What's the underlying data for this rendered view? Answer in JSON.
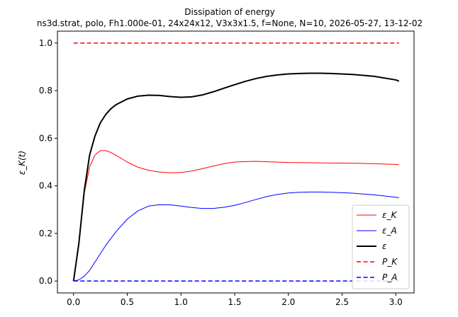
{
  "chart_data": {
    "type": "line",
    "title": "Dissipation of energy",
    "subtitle": "ns3d.strat, polo, Fh1.000e-01, 24x24x12, V3x3x1.5, f=None, N=10, 2026-05-27, 13-12-02",
    "xlabel": "",
    "ylabel": "ε_K(t)",
    "xlim": [
      -0.15,
      3.17
    ],
    "ylim": [
      -0.05,
      1.05
    ],
    "xticks": [
      0.0,
      0.5,
      1.0,
      1.5,
      2.0,
      2.5,
      3.0
    ],
    "xtick_labels": [
      "0.0",
      "0.5",
      "1.0",
      "1.5",
      "2.0",
      "2.5",
      "3.0"
    ],
    "yticks": [
      0.0,
      0.2,
      0.4,
      0.6,
      0.8,
      1.0
    ],
    "ytick_labels": [
      "0.0",
      "0.2",
      "0.4",
      "0.6",
      "0.8",
      "1.0"
    ],
    "grid": false,
    "legend_position": "bottom-right",
    "series": [
      {
        "name": "ε_K",
        "color": "#ff0000",
        "width": 1,
        "dash": "solid",
        "x": [
          0.0,
          0.05,
          0.1,
          0.15,
          0.2,
          0.25,
          0.3,
          0.35,
          0.4,
          0.5,
          0.6,
          0.7,
          0.8,
          0.9,
          1.0,
          1.1,
          1.2,
          1.3,
          1.4,
          1.5,
          1.6,
          1.7,
          1.8,
          2.0,
          2.2,
          2.4,
          2.6,
          2.8,
          3.0,
          3.03
        ],
        "y": [
          0.0,
          0.15,
          0.37,
          0.48,
          0.53,
          0.548,
          0.548,
          0.54,
          0.527,
          0.5,
          0.478,
          0.465,
          0.458,
          0.455,
          0.456,
          0.462,
          0.472,
          0.483,
          0.493,
          0.5,
          0.502,
          0.503,
          0.501,
          0.498,
          0.497,
          0.496,
          0.495,
          0.493,
          0.49,
          0.489
        ]
      },
      {
        "name": "ε_A",
        "color": "#0000ff",
        "width": 1,
        "dash": "solid",
        "x": [
          0.0,
          0.05,
          0.1,
          0.15,
          0.2,
          0.3,
          0.4,
          0.5,
          0.6,
          0.7,
          0.8,
          0.9,
          1.0,
          1.1,
          1.2,
          1.3,
          1.4,
          1.5,
          1.6,
          1.7,
          1.8,
          1.9,
          2.0,
          2.1,
          2.2,
          2.3,
          2.4,
          2.6,
          2.8,
          3.0,
          3.03
        ],
        "y": [
          0.0,
          0.005,
          0.02,
          0.045,
          0.08,
          0.15,
          0.21,
          0.26,
          0.295,
          0.315,
          0.321,
          0.32,
          0.315,
          0.309,
          0.305,
          0.305,
          0.31,
          0.318,
          0.33,
          0.343,
          0.355,
          0.364,
          0.37,
          0.373,
          0.374,
          0.374,
          0.373,
          0.369,
          0.362,
          0.352,
          0.35
        ]
      },
      {
        "name": "ε",
        "color": "#000000",
        "width": 2,
        "dash": "solid",
        "x": [
          0.0,
          0.05,
          0.1,
          0.15,
          0.2,
          0.25,
          0.3,
          0.35,
          0.4,
          0.5,
          0.6,
          0.7,
          0.8,
          0.9,
          1.0,
          1.1,
          1.2,
          1.3,
          1.4,
          1.5,
          1.6,
          1.7,
          1.8,
          1.9,
          2.0,
          2.1,
          2.2,
          2.3,
          2.4,
          2.6,
          2.8,
          3.0,
          3.03
        ],
        "y": [
          0.0,
          0.16,
          0.38,
          0.53,
          0.61,
          0.665,
          0.7,
          0.725,
          0.742,
          0.765,
          0.777,
          0.781,
          0.78,
          0.775,
          0.772,
          0.774,
          0.782,
          0.795,
          0.81,
          0.825,
          0.839,
          0.851,
          0.86,
          0.866,
          0.87,
          0.872,
          0.873,
          0.873,
          0.872,
          0.868,
          0.86,
          0.845,
          0.84
        ]
      },
      {
        "name": "P_K",
        "color": "#ff0000",
        "width": 1.5,
        "dash": "dashed",
        "x": [
          0.0,
          3.03
        ],
        "y": [
          1.0,
          1.0
        ]
      },
      {
        "name": "P_A",
        "color": "#0000ff",
        "width": 1.5,
        "dash": "dashed",
        "x": [
          0.0,
          3.03
        ],
        "y": [
          0.0,
          0.0
        ]
      }
    ]
  }
}
